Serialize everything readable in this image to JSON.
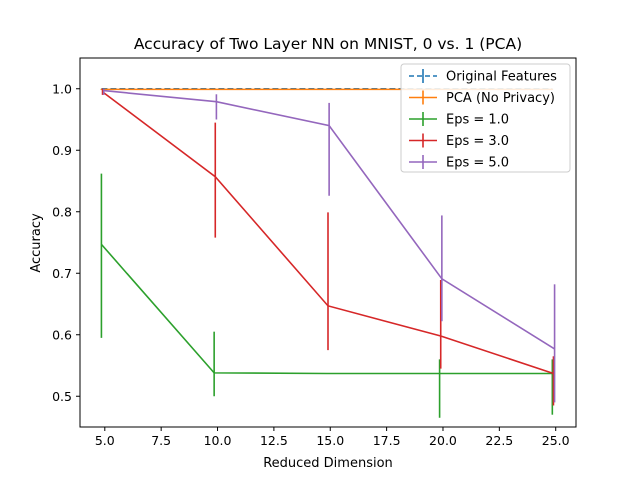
{
  "chart_data": {
    "type": "line",
    "title": "Accuracy of Two Layer NN on MNIST, 0 vs. 1 (PCA)",
    "xlabel": "Reduced Dimension",
    "ylabel": "Accuracy",
    "xlim": [
      3.9,
      25.9
    ],
    "ylim": [
      0.45,
      1.05
    ],
    "xticks": [
      5.0,
      7.5,
      10.0,
      12.5,
      15.0,
      17.5,
      20.0,
      22.5,
      25.0
    ],
    "xtick_labels": [
      "5.0",
      "7.5",
      "10.0",
      "12.5",
      "15.0",
      "17.5",
      "20.0",
      "22.5",
      "25.0"
    ],
    "yticks": [
      0.5,
      0.6,
      0.7,
      0.8,
      0.9,
      1.0
    ],
    "ytick_labels": [
      "0.5",
      "0.6",
      "0.7",
      "0.8",
      "0.9",
      "1.0"
    ],
    "grid": false,
    "legend_position": "top-right",
    "series": [
      {
        "name": "Original Features",
        "color": "#1f77b4",
        "dashed": true,
        "x": [
          4.85,
          9.85,
          14.85,
          19.85,
          24.85
        ],
        "y": [
          1.0,
          1.0,
          1.0,
          1.0,
          1.0
        ],
        "err_low": [
          1.0,
          1.0,
          1.0,
          1.0,
          1.0
        ],
        "err_high": [
          1.0,
          1.0,
          1.0,
          1.0,
          1.0
        ]
      },
      {
        "name": "PCA (No Privacy)",
        "color": "#ff7f0e",
        "dashed": false,
        "x": [
          4.85,
          9.85,
          14.85,
          19.85,
          24.85
        ],
        "y": [
          0.999,
          0.999,
          0.999,
          0.999,
          0.999
        ],
        "err_low": [
          0.998,
          0.998,
          0.998,
          0.998,
          0.998
        ],
        "err_high": [
          1.0,
          1.0,
          1.0,
          1.0,
          1.0
        ]
      },
      {
        "name": "Eps = 1.0",
        "color": "#2ca02c",
        "dashed": false,
        "x": [
          4.85,
          9.85,
          14.85,
          19.85,
          24.85
        ],
        "y": [
          0.747,
          0.538,
          0.537,
          0.537,
          0.537
        ],
        "err_low": [
          0.595,
          0.5,
          0.537,
          0.465,
          0.47
        ],
        "err_high": [
          0.862,
          0.605,
          0.537,
          0.56,
          0.56
        ]
      },
      {
        "name": "Eps = 3.0",
        "color": "#d62728",
        "dashed": false,
        "x": [
          4.9,
          9.9,
          14.9,
          19.9,
          24.9
        ],
        "y": [
          0.995,
          0.857,
          0.647,
          0.598,
          0.537
        ],
        "err_low": [
          0.99,
          0.758,
          0.575,
          0.545,
          0.485
        ],
        "err_high": [
          1.0,
          0.945,
          0.799,
          0.689,
          0.565
        ]
      },
      {
        "name": "Eps = 5.0",
        "color": "#9467bd",
        "dashed": false,
        "x": [
          4.95,
          9.95,
          14.95,
          19.95,
          24.95
        ],
        "y": [
          0.997,
          0.979,
          0.94,
          0.691,
          0.577
        ],
        "err_low": [
          0.99,
          0.95,
          0.826,
          0.622,
          0.49
        ],
        "err_high": [
          1.0,
          0.991,
          0.977,
          0.794,
          0.682
        ]
      }
    ]
  }
}
